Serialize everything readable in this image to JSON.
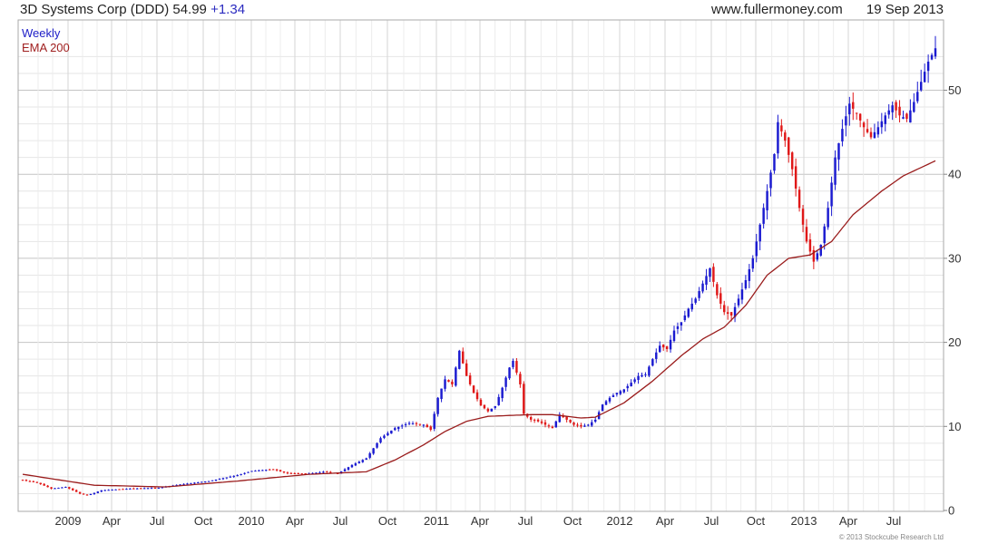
{
  "header": {
    "title": "3D Systems Corp (DDD) 54.99",
    "change": "+1.34",
    "site": "www.fullermoney.com",
    "date": "19 Sep 2013"
  },
  "legend": {
    "series1": "Weekly",
    "series2": "EMA 200"
  },
  "footer": {
    "copyright": "© 2013 Stockcube Research Ltd"
  },
  "colors": {
    "up": "#1a1ad0",
    "down": "#e01818",
    "ema": "#9a1c1c",
    "grid": "#d9d9d9"
  },
  "chart_data": {
    "type": "candlestick",
    "title": "3D Systems Corp (DDD) 54.99 +1.34",
    "ylim": [
      0,
      56
    ],
    "y_ticks": [
      0,
      10,
      20,
      30,
      40,
      50
    ],
    "x_tick_labels": [
      "2009",
      "Apr",
      "Jul",
      "Oct",
      "2010",
      "Apr",
      "Jul",
      "Oct",
      "2011",
      "Apr",
      "Jul",
      "Oct",
      "2012",
      "Apr",
      "Jul",
      "Oct",
      "2013",
      "Apr",
      "Jul"
    ],
    "grid": true,
    "legend_position": "top-left",
    "price_anchors_weekly_close": [
      [
        0,
        3.6
      ],
      [
        4,
        3.3
      ],
      [
        8,
        2.6
      ],
      [
        12,
        2.8
      ],
      [
        16,
        2.0
      ],
      [
        18,
        1.8
      ],
      [
        22,
        2.4
      ],
      [
        30,
        2.6
      ],
      [
        38,
        2.7
      ],
      [
        44,
        3.1
      ],
      [
        52,
        3.5
      ],
      [
        60,
        4.2
      ],
      [
        64,
        4.7
      ],
      [
        70,
        4.9
      ],
      [
        74,
        4.4
      ],
      [
        80,
        4.4
      ],
      [
        84,
        4.6
      ],
      [
        88,
        4.4
      ],
      [
        92,
        5.4
      ],
      [
        96,
        6.2
      ],
      [
        100,
        8.6
      ],
      [
        104,
        9.8
      ],
      [
        108,
        10.4
      ],
      [
        112,
        10.2
      ],
      [
        114,
        9.6
      ],
      [
        116,
        13.4
      ],
      [
        118,
        15.6
      ],
      [
        120,
        15.0
      ],
      [
        122,
        19.0
      ],
      [
        124,
        16.0
      ],
      [
        126,
        14.0
      ],
      [
        128,
        12.5
      ],
      [
        130,
        11.8
      ],
      [
        132,
        12.4
      ],
      [
        134,
        14.6
      ],
      [
        136,
        17.0
      ],
      [
        137,
        17.8
      ],
      [
        139,
        15.0
      ],
      [
        140,
        11.5
      ],
      [
        142,
        10.8
      ],
      [
        144,
        10.6
      ],
      [
        146,
        10.2
      ],
      [
        148,
        9.8
      ],
      [
        150,
        11.4
      ],
      [
        152,
        10.8
      ],
      [
        154,
        10.2
      ],
      [
        156,
        10.0
      ],
      [
        158,
        10.2
      ],
      [
        160,
        10.8
      ],
      [
        162,
        12.6
      ],
      [
        164,
        13.4
      ],
      [
        166,
        14.0
      ],
      [
        168,
        14.4
      ],
      [
        170,
        15.2
      ],
      [
        172,
        16.0
      ],
      [
        174,
        16.2
      ],
      [
        176,
        18.0
      ],
      [
        178,
        19.6
      ],
      [
        180,
        19.2
      ],
      [
        182,
        21.4
      ],
      [
        184,
        22.4
      ],
      [
        186,
        24.0
      ],
      [
        188,
        25.2
      ],
      [
        190,
        27.0
      ],
      [
        192,
        28.8
      ],
      [
        194,
        25.6
      ],
      [
        196,
        23.6
      ],
      [
        198,
        23.2
      ],
      [
        200,
        25.2
      ],
      [
        202,
        27.4
      ],
      [
        204,
        30.0
      ],
      [
        206,
        34.0
      ],
      [
        208,
        38.0
      ],
      [
        210,
        42.4
      ],
      [
        211,
        46.2
      ],
      [
        213,
        44.0
      ],
      [
        215,
        40.6
      ],
      [
        217,
        36.0
      ],
      [
        219,
        32.0
      ],
      [
        221,
        29.6
      ],
      [
        223,
        31.6
      ],
      [
        225,
        36.0
      ],
      [
        227,
        42.0
      ],
      [
        229,
        45.4
      ],
      [
        231,
        48.4
      ],
      [
        233,
        47.2
      ],
      [
        235,
        45.6
      ],
      [
        237,
        44.4
      ],
      [
        239,
        45.6
      ],
      [
        241,
        47.0
      ],
      [
        243,
        48.2
      ],
      [
        245,
        47.0
      ],
      [
        247,
        46.6
      ],
      [
        249,
        48.6
      ],
      [
        251,
        51.0
      ],
      [
        253,
        53.4
      ],
      [
        255,
        54.99
      ]
    ],
    "ema200_anchors": [
      [
        0,
        4.3
      ],
      [
        20,
        3.0
      ],
      [
        40,
        2.8
      ],
      [
        60,
        3.5
      ],
      [
        80,
        4.3
      ],
      [
        96,
        4.6
      ],
      [
        104,
        6.0
      ],
      [
        112,
        7.8
      ],
      [
        118,
        9.4
      ],
      [
        124,
        10.6
      ],
      [
        130,
        11.2
      ],
      [
        136,
        11.3
      ],
      [
        142,
        11.4
      ],
      [
        148,
        11.4
      ],
      [
        156,
        11.0
      ],
      [
        160,
        11.1
      ],
      [
        168,
        12.8
      ],
      [
        176,
        15.4
      ],
      [
        184,
        18.4
      ],
      [
        190,
        20.4
      ],
      [
        196,
        21.8
      ],
      [
        202,
        24.4
      ],
      [
        208,
        28.0
      ],
      [
        214,
        30.0
      ],
      [
        220,
        30.4
      ],
      [
        226,
        32.0
      ],
      [
        232,
        35.2
      ],
      [
        240,
        38.0
      ],
      [
        246,
        39.8
      ],
      [
        250,
        40.6
      ],
      [
        255,
        41.6
      ]
    ]
  }
}
